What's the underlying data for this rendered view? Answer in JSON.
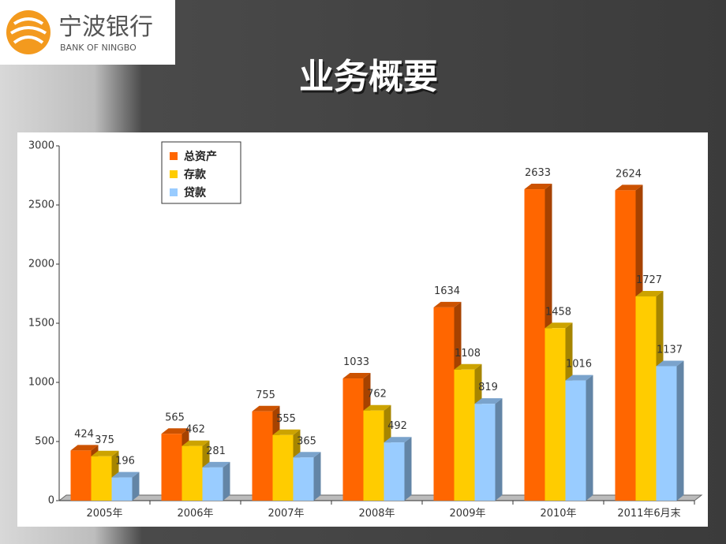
{
  "logo": {
    "name": "宁波银行",
    "name_en": "BANK OF NINGBO"
  },
  "chart_data": {
    "type": "bar3d",
    "title": "业务概要",
    "categories": [
      "2005年",
      "2006年",
      "2007年",
      "2008年",
      "2009年",
      "2010年",
      "2011年6月末"
    ],
    "series": [
      {
        "name": "总资产",
        "color": "#ff6600",
        "values": [
          424,
          565,
          755,
          1033,
          1634,
          2633,
          2624
        ]
      },
      {
        "name": "存款",
        "color": "#ffcc00",
        "values": [
          375,
          462,
          555,
          762,
          1108,
          1458,
          1727
        ]
      },
      {
        "name": "贷款",
        "color": "#99ccff",
        "values": [
          196,
          281,
          365,
          492,
          819,
          1016,
          1137
        ]
      }
    ],
    "ylim": [
      0,
      3000
    ],
    "yticks": [
      0,
      500,
      1000,
      1500,
      2000,
      2500,
      3000
    ],
    "legend": "upper-left"
  }
}
